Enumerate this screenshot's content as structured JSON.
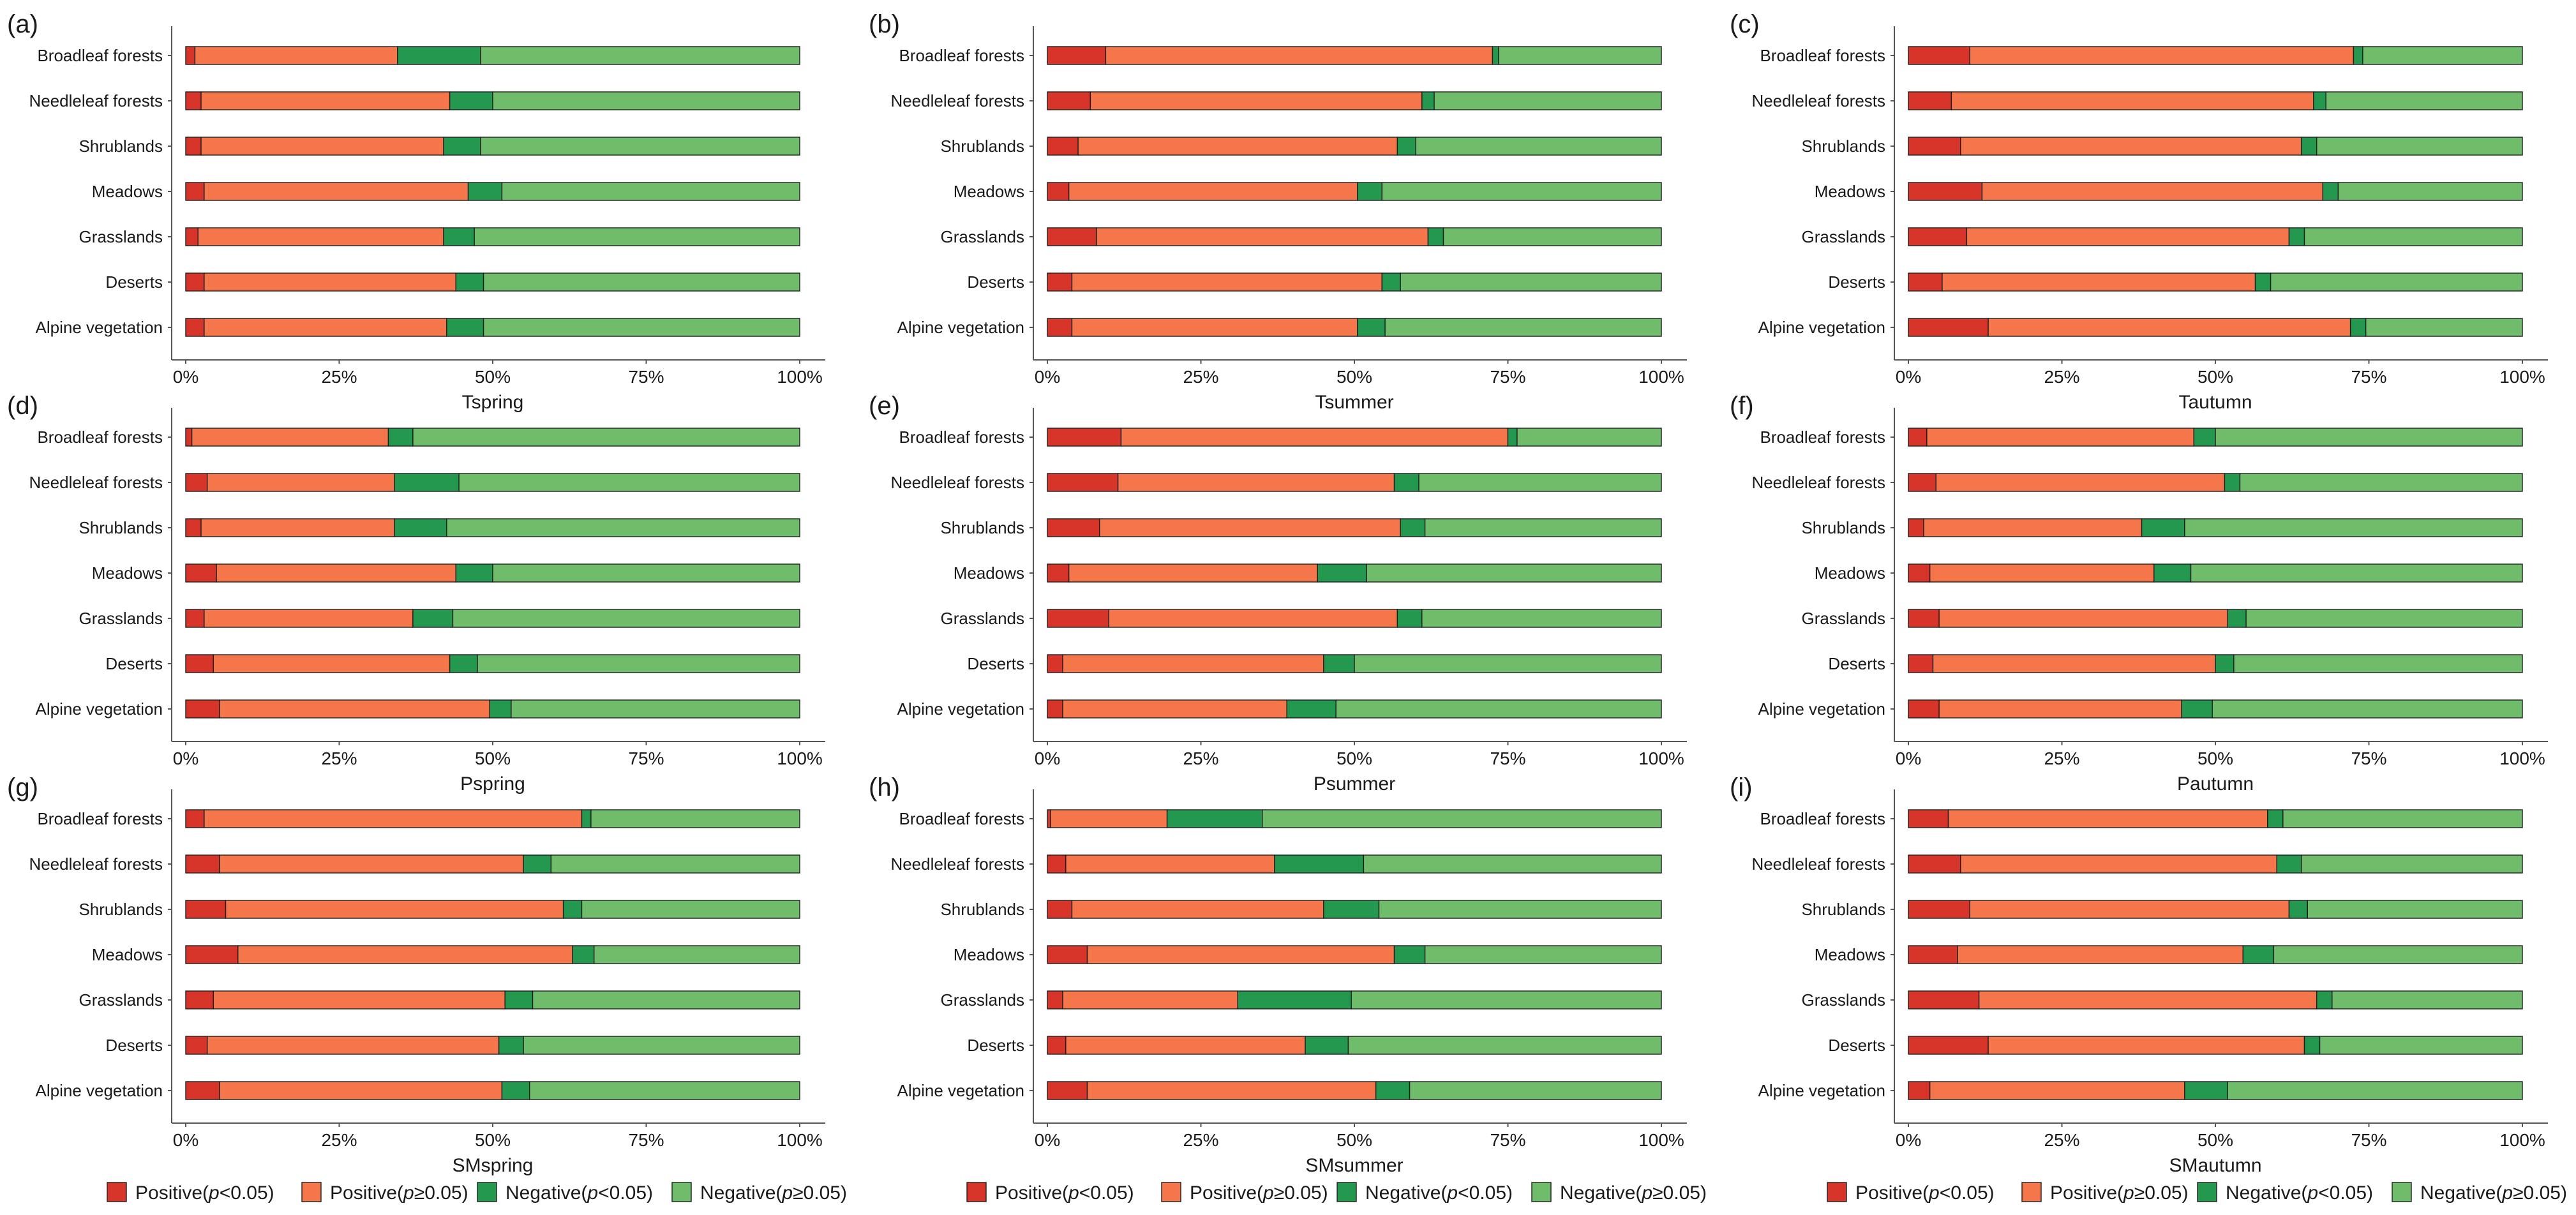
{
  "categories": [
    "Broadleaf forests",
    "Needleleaf forests",
    "Shrublands",
    "Meadows",
    "Grasslands",
    "Deserts",
    "Alpine vegetation"
  ],
  "x_ticks": [
    "0%",
    "25%",
    "50%",
    "75%",
    "100%"
  ],
  "legend": [
    {
      "name": "Positive(p<0.05)",
      "prefix": "Positive(",
      "var": "p",
      "suffix": "<0.05)",
      "color": "#d7342a"
    },
    {
      "name": "Positive(p≥0.05)",
      "prefix": "Positive(",
      "var": "p",
      "suffix": "≥0.05)",
      "color": "#f4764a"
    },
    {
      "name": "Negative(p<0.05)",
      "prefix": "Negative(",
      "var": "p",
      "suffix": "<0.05)",
      "color": "#24984f"
    },
    {
      "name": "Negative(p≥0.05)",
      "prefix": "Negative(",
      "var": "p",
      "suffix": "≥0.05)",
      "color": "#6fbd6a"
    }
  ],
  "chart_data": [
    {
      "type": "bar",
      "stacked": "percent",
      "orientation": "horizontal",
      "panel_label": "(a)",
      "xlabel": "Tspring",
      "xlim": [
        0,
        100
      ],
      "categories": [
        "Broadleaf forests",
        "Needleleaf forests",
        "Shrublands",
        "Meadows",
        "Grasslands",
        "Deserts",
        "Alpine vegetation"
      ],
      "series": [
        {
          "name": "Positive(p<0.05)",
          "values": [
            1.5,
            2.5,
            2.5,
            3,
            2,
            3,
            3
          ]
        },
        {
          "name": "Positive(p≥0.05)",
          "values": [
            33,
            40.5,
            39.5,
            43,
            40,
            41,
            39.5
          ]
        },
        {
          "name": "Negative(p<0.05)",
          "values": [
            13.5,
            7,
            6,
            5.5,
            5,
            4.5,
            6
          ]
        },
        {
          "name": "Negative(p≥0.05)",
          "values": [
            52,
            50,
            52,
            48.5,
            53,
            51.5,
            51.5
          ]
        }
      ]
    },
    {
      "type": "bar",
      "stacked": "percent",
      "orientation": "horizontal",
      "panel_label": "(b)",
      "xlabel": "Tsummer",
      "xlim": [
        0,
        100
      ],
      "categories": [
        "Broadleaf forests",
        "Needleleaf forests",
        "Shrublands",
        "Meadows",
        "Grasslands",
        "Deserts",
        "Alpine vegetation"
      ],
      "series": [
        {
          "name": "Positive(p<0.05)",
          "values": [
            9.5,
            7,
            5,
            3.5,
            8,
            4,
            4
          ]
        },
        {
          "name": "Positive(p≥0.05)",
          "values": [
            63,
            54,
            52,
            47,
            54,
            50.5,
            46.5
          ]
        },
        {
          "name": "Negative(p<0.05)",
          "values": [
            1,
            2,
            3,
            4,
            2.5,
            3,
            4.5
          ]
        },
        {
          "name": "Negative(p≥0.05)",
          "values": [
            26.5,
            37,
            40,
            45.5,
            35.5,
            42.5,
            45
          ]
        }
      ]
    },
    {
      "type": "bar",
      "stacked": "percent",
      "orientation": "horizontal",
      "panel_label": "(c)",
      "xlabel": "Tautumn",
      "xlim": [
        0,
        100
      ],
      "categories": [
        "Broadleaf forests",
        "Needleleaf forests",
        "Shrublands",
        "Meadows",
        "Grasslands",
        "Deserts",
        "Alpine vegetation"
      ],
      "series": [
        {
          "name": "Positive(p<0.05)",
          "values": [
            10,
            7,
            8.5,
            12,
            9.5,
            5.5,
            13
          ]
        },
        {
          "name": "Positive(p≥0.05)",
          "values": [
            62.5,
            59,
            55.5,
            55.5,
            52.5,
            51,
            59
          ]
        },
        {
          "name": "Negative(p<0.05)",
          "values": [
            1.5,
            2,
            2.5,
            2.5,
            2.5,
            2.5,
            2.5
          ]
        },
        {
          "name": "Negative(p≥0.05)",
          "values": [
            26,
            32,
            33.5,
            30,
            35.5,
            41,
            25.5
          ]
        }
      ]
    },
    {
      "type": "bar",
      "stacked": "percent",
      "orientation": "horizontal",
      "panel_label": "(d)",
      "xlabel": "Pspring",
      "xlim": [
        0,
        100
      ],
      "categories": [
        "Broadleaf forests",
        "Needleleaf forests",
        "Shrublands",
        "Meadows",
        "Grasslands",
        "Deserts",
        "Alpine vegetation"
      ],
      "series": [
        {
          "name": "Positive(p<0.05)",
          "values": [
            1,
            3.5,
            2.5,
            5,
            3,
            4.5,
            5.5
          ]
        },
        {
          "name": "Positive(p≥0.05)",
          "values": [
            32,
            30.5,
            31.5,
            39,
            34,
            38.5,
            44
          ]
        },
        {
          "name": "Negative(p<0.05)",
          "values": [
            4,
            10.5,
            8.5,
            6,
            6.5,
            4.5,
            3.5
          ]
        },
        {
          "name": "Negative(p≥0.05)",
          "values": [
            63,
            55.5,
            57.5,
            50,
            56.5,
            52.5,
            47
          ]
        }
      ]
    },
    {
      "type": "bar",
      "stacked": "percent",
      "orientation": "horizontal",
      "panel_label": "(e)",
      "xlabel": "Psummer",
      "xlim": [
        0,
        100
      ],
      "categories": [
        "Broadleaf forests",
        "Needleleaf forests",
        "Shrublands",
        "Meadows",
        "Grasslands",
        "Deserts",
        "Alpine vegetation"
      ],
      "series": [
        {
          "name": "Positive(p<0.05)",
          "values": [
            12,
            11.5,
            8.5,
            3.5,
            10,
            2.5,
            2.5
          ]
        },
        {
          "name": "Positive(p≥0.05)",
          "values": [
            63,
            45,
            49,
            40.5,
            47,
            42.5,
            36.5
          ]
        },
        {
          "name": "Negative(p<0.05)",
          "values": [
            1.5,
            4,
            4,
            8,
            4,
            5,
            8
          ]
        },
        {
          "name": "Negative(p≥0.05)",
          "values": [
            23.5,
            39.5,
            38.5,
            48,
            39,
            50,
            53
          ]
        }
      ]
    },
    {
      "type": "bar",
      "stacked": "percent",
      "orientation": "horizontal",
      "panel_label": "(f)",
      "xlabel": "Pautumn",
      "xlim": [
        0,
        100
      ],
      "categories": [
        "Broadleaf forests",
        "Needleleaf forests",
        "Shrublands",
        "Meadows",
        "Grasslands",
        "Deserts",
        "Alpine vegetation"
      ],
      "series": [
        {
          "name": "Positive(p<0.05)",
          "values": [
            3,
            4.5,
            2.5,
            3.5,
            5,
            4,
            5
          ]
        },
        {
          "name": "Positive(p≥0.05)",
          "values": [
            43.5,
            47,
            35.5,
            36.5,
            47,
            46,
            39.5
          ]
        },
        {
          "name": "Negative(p<0.05)",
          "values": [
            3.5,
            2.5,
            7,
            6,
            3,
            3,
            5
          ]
        },
        {
          "name": "Negative(p≥0.05)",
          "values": [
            50,
            46,
            55,
            54,
            45,
            47,
            50.5
          ]
        }
      ]
    },
    {
      "type": "bar",
      "stacked": "percent",
      "orientation": "horizontal",
      "panel_label": "(g)",
      "xlabel": "SMspring",
      "xlim": [
        0,
        100
      ],
      "categories": [
        "Broadleaf forests",
        "Needleleaf forests",
        "Shrublands",
        "Meadows",
        "Grasslands",
        "Deserts",
        "Alpine vegetation"
      ],
      "series": [
        {
          "name": "Positive(p<0.05)",
          "values": [
            3,
            5.5,
            6.5,
            8.5,
            4.5,
            3.5,
            5.5
          ]
        },
        {
          "name": "Positive(p≥0.05)",
          "values": [
            61.5,
            49.5,
            55,
            54.5,
            47.5,
            47.5,
            46
          ]
        },
        {
          "name": "Negative(p<0.05)",
          "values": [
            1.5,
            4.5,
            3,
            3.5,
            4.5,
            4,
            4.5
          ]
        },
        {
          "name": "Negative(p≥0.05)",
          "values": [
            34,
            40.5,
            35.5,
            33.5,
            43.5,
            45,
            44
          ]
        }
      ]
    },
    {
      "type": "bar",
      "stacked": "percent",
      "orientation": "horizontal",
      "panel_label": "(h)",
      "xlabel": "SMsummer",
      "xlim": [
        0,
        100
      ],
      "categories": [
        "Broadleaf forests",
        "Needleleaf forests",
        "Shrublands",
        "Meadows",
        "Grasslands",
        "Deserts",
        "Alpine vegetation"
      ],
      "series": [
        {
          "name": "Positive(p<0.05)",
          "values": [
            0.5,
            3,
            4,
            6.5,
            2.5,
            3,
            6.5
          ]
        },
        {
          "name": "Positive(p≥0.05)",
          "values": [
            19,
            34,
            41,
            50,
            28.5,
            39,
            47
          ]
        },
        {
          "name": "Negative(p<0.05)",
          "values": [
            15.5,
            14.5,
            9,
            5,
            18.5,
            7,
            5.5
          ]
        },
        {
          "name": "Negative(p≥0.05)",
          "values": [
            65,
            48.5,
            46,
            38.5,
            50.5,
            51,
            41
          ]
        }
      ]
    },
    {
      "type": "bar",
      "stacked": "percent",
      "orientation": "horizontal",
      "panel_label": "(i)",
      "xlabel": "SMautumn",
      "xlim": [
        0,
        100
      ],
      "categories": [
        "Broadleaf forests",
        "Needleleaf forests",
        "Shrublands",
        "Meadows",
        "Grasslands",
        "Deserts",
        "Alpine vegetation"
      ],
      "series": [
        {
          "name": "Positive(p<0.05)",
          "values": [
            6.5,
            8.5,
            10,
            8,
            11.5,
            13,
            3.5
          ]
        },
        {
          "name": "Positive(p≥0.05)",
          "values": [
            52,
            51.5,
            52,
            46.5,
            55,
            51.5,
            41.5
          ]
        },
        {
          "name": "Negative(p<0.05)",
          "values": [
            2.5,
            4,
            3,
            5,
            2.5,
            2.5,
            7
          ]
        },
        {
          "name": "Negative(p≥0.05)",
          "values": [
            39,
            36,
            35,
            40.5,
            31,
            33,
            48
          ]
        }
      ]
    }
  ]
}
